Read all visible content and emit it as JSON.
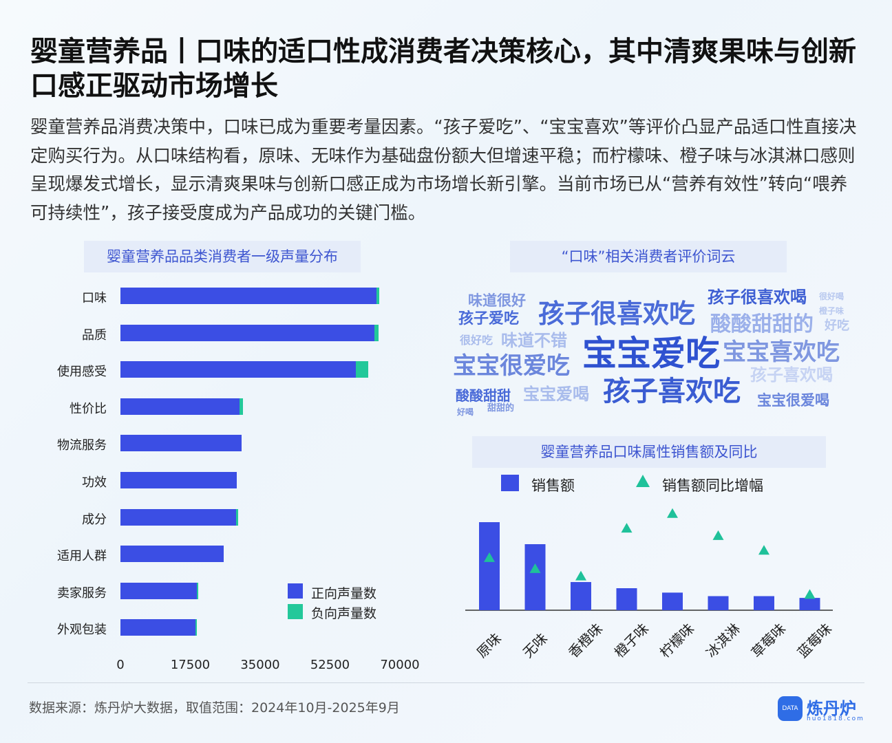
{
  "page": {
    "title": "婴童营养品丨口味的适口性成消费者决策核心，其中清爽果味与创新口感正驱动市场增长",
    "description": "婴童营养品消费决策中，口味已成为重要考量因素。“孩子爱吃”、“宝宝喜欢”等评价凸显产品适口性直接决定购买行为。从口味结构看，原味、无味作为基础盘份额大但增速平稳；而柠檬味、橙子味与冰淇淋口感则呈现爆发式增长，显示清爽果味与创新口感正成为市场增长新引擎。当前市场已从“营养有效性”转向“喂养可持续性”，孩子接受度成为产品成功的关键门槛。",
    "source": "数据来源：炼丹炉大数据，取值范围：2024年10月-2025年9月",
    "logo_name": "炼丹炉",
    "logo_url": "huo1818.com",
    "logo_badge": "DATA"
  },
  "colors": {
    "positive": "#3b4ee4",
    "negative": "#23c89a",
    "bar": "#3b4ee4",
    "triangle": "#1fc19a"
  },
  "panels": {
    "bar_title": "婴童营养品品类消费者一级声量分布",
    "cloud_title": "“口味”相关消费者评价词云",
    "flavor_title": "婴童营养品口味属性销售额及同比"
  },
  "chart_data": [
    {
      "type": "bar",
      "orientation": "horizontal",
      "stacked": true,
      "title": "婴童营养品品类消费者一级声量分布",
      "categories": [
        "口味",
        "品质",
        "使用感受",
        "性价比",
        "物流服务",
        "功效",
        "成分",
        "适用人群",
        "卖家服务",
        "外观包装"
      ],
      "series": [
        {
          "name": "正向声量数",
          "values": [
            64200,
            63600,
            58900,
            29800,
            30400,
            29100,
            29000,
            25800,
            19200,
            18800
          ]
        },
        {
          "name": "负向声量数",
          "values": [
            700,
            1000,
            3100,
            900,
            0,
            0,
            400,
            0,
            300,
            400
          ]
        }
      ],
      "xticks": [
        "0",
        "17500",
        "35000",
        "52500",
        "70000"
      ],
      "xlim": [
        0,
        70000
      ],
      "legend_position": "bottom-right"
    },
    {
      "type": "bar",
      "title": "婴童营养品口味属性销售额及同比",
      "categories": [
        "原味",
        "无味",
        "香橙味",
        "橙子味",
        "柠檬味",
        "冰淇淋",
        "草莓味",
        "蓝莓味"
      ],
      "series": [
        {
          "name": "销售额",
          "values": [
            100,
            75,
            32,
            25,
            20,
            16,
            16,
            14
          ]
        },
        {
          "name": "销售额同比增幅",
          "marker": "triangle",
          "values": [
            12,
            9,
            7,
            20,
            24,
            18,
            14,
            2
          ]
        }
      ],
      "note": "no value axis printed; relative magnitudes estimated",
      "legend_position": "top"
    }
  ],
  "wordcloud": [
    {
      "text": "味道很好",
      "size": 21,
      "color": "#7f97e0"
    },
    {
      "text": "孩子很喜欢吃",
      "size": 38,
      "color": "#4a6bd8"
    },
    {
      "text": "孩子很喜欢喝",
      "size": 24,
      "color": "#3e5fd3"
    },
    {
      "text": "很好喝",
      "size": 12,
      "color": "#b8c8ef"
    },
    {
      "text": "橙子味",
      "size": 12,
      "color": "#b8c8ef"
    },
    {
      "text": "孩子爱吃",
      "size": 22,
      "color": "#4a6bd8"
    },
    {
      "text": "酸酸甜甜的",
      "size": 30,
      "color": "#9bb0ea"
    },
    {
      "text": "好吃",
      "size": 18,
      "color": "#b8c8ef"
    },
    {
      "text": "很好吃",
      "size": 16,
      "color": "#a9bcec"
    },
    {
      "text": "味道不错",
      "size": 24,
      "color": "#a9bcec"
    },
    {
      "text": "宝宝爱吃",
      "size": 50,
      "color": "#2f52d0"
    },
    {
      "text": "宝宝喜欢吃",
      "size": 34,
      "color": "#7f97e0"
    },
    {
      "text": "宝宝很爱吃",
      "size": 34,
      "color": "#6b86dc"
    },
    {
      "text": "孩子喜欢喝",
      "size": 24,
      "color": "#c6d3f3"
    },
    {
      "text": "酸酸甜甜",
      "size": 20,
      "color": "#4a6bd8"
    },
    {
      "text": "宝宝爱喝",
      "size": 24,
      "color": "#a9bcec"
    },
    {
      "text": "孩子喜欢吃",
      "size": 40,
      "color": "#3a5cd2"
    },
    {
      "text": "宝宝很爱喝",
      "size": 21,
      "color": "#6b86dc"
    },
    {
      "text": "好喝",
      "size": 12,
      "color": "#7f97e0"
    },
    {
      "text": "甜甜的",
      "size": 13,
      "color": "#7f97e0"
    }
  ]
}
